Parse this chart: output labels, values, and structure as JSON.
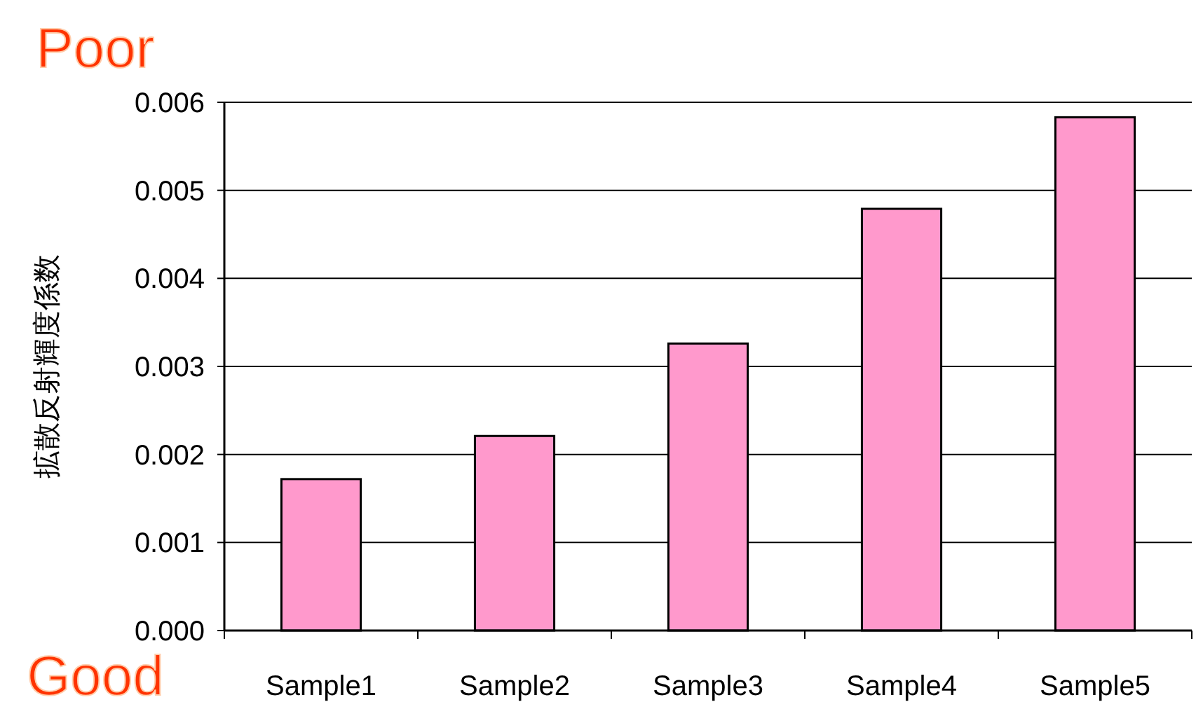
{
  "chart_data": {
    "type": "bar",
    "ylabel": "拡散反射輝度係数",
    "categories": [
      "Sample1",
      "Sample2",
      "Sample3",
      "Sample4",
      "Sample5"
    ],
    "values": [
      0.00172,
      0.00221,
      0.00326,
      0.00479,
      0.00583
    ],
    "color": "#ff99cc",
    "ylim": [
      0,
      0.006
    ],
    "yticks": [
      {
        "value": 0,
        "label": "0.000"
      },
      {
        "value": 0.001,
        "label": "0.001"
      },
      {
        "value": 0.002,
        "label": "0.002"
      },
      {
        "value": 0.003,
        "label": "0.003"
      },
      {
        "value": 0.004,
        "label": "0.004"
      },
      {
        "value": 0.005,
        "label": "0.005"
      },
      {
        "value": 0.006,
        "label": "0.006"
      }
    ],
    "grid": "y",
    "annotations": [
      "Poor",
      "Good"
    ]
  }
}
